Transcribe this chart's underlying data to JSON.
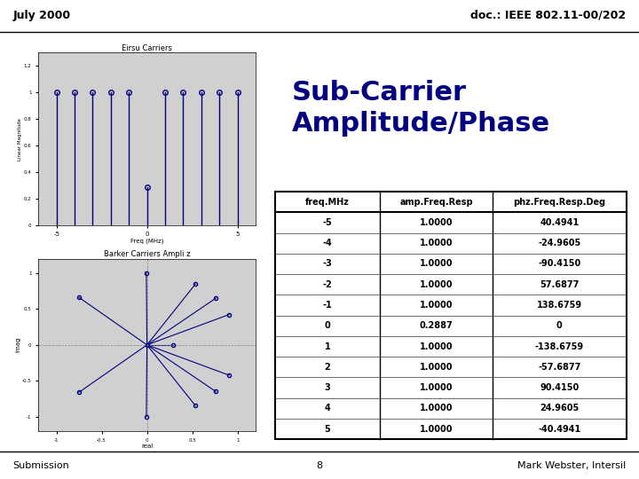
{
  "title_left": "July 2000",
  "title_right": "doc.: IEEE 802.11-00/202",
  "main_title": "Sub-Carrier\nAmplitude/Phase",
  "table_headers": [
    "freq.MHz",
    "amp.Freq.Resp",
    "phz.Freq.Resp.Deg"
  ],
  "table_data": [
    [
      "-5",
      "1.0000",
      "40.4941"
    ],
    [
      "-4",
      "1.0000",
      "-24.9605"
    ],
    [
      "-3",
      "1.0000",
      "-90.4150"
    ],
    [
      "-2",
      "1.0000",
      "57.6877"
    ],
    [
      "-1",
      "1.0000",
      "138.6759"
    ],
    [
      "0",
      "0.2887",
      "0"
    ],
    [
      "1",
      "1.0000",
      "-138.6759"
    ],
    [
      "2",
      "1.0000",
      "-57.6877"
    ],
    [
      "3",
      "1.0000",
      "90.4150"
    ],
    [
      "4",
      "1.0000",
      "24.9605"
    ],
    [
      "5",
      "1.0000",
      "-40.4941"
    ]
  ],
  "footer_left": "Submission",
  "footer_center": "8",
  "footer_right": "Mark Webster, Intersil",
  "bg_color": "#ffffff",
  "plot_bg": "#d0d0d0",
  "title_color": "#000080",
  "top_plot_title": "Eirsu Carriers",
  "bottom_plot_title": "Barker Carriers Ampli z",
  "carrier_freqs_hi": [
    -5,
    -4,
    -3,
    -2,
    -1,
    1,
    2,
    3,
    4,
    5
  ],
  "carrier_freq_lo": 0,
  "carrier_amp_lo": 0.2887,
  "phases_deg": [
    40.4941,
    -24.9605,
    -90.415,
    57.6877,
    138.6759,
    0.0,
    -138.6759,
    -57.6877,
    90.415,
    24.9605,
    -40.4941
  ],
  "all_freqs": [
    -5,
    -4,
    -3,
    -2,
    -1,
    0,
    1,
    2,
    3,
    4,
    5
  ],
  "all_amps": [
    1.0,
    1.0,
    1.0,
    1.0,
    1.0,
    0.2887,
    1.0,
    1.0,
    1.0,
    1.0,
    1.0
  ]
}
